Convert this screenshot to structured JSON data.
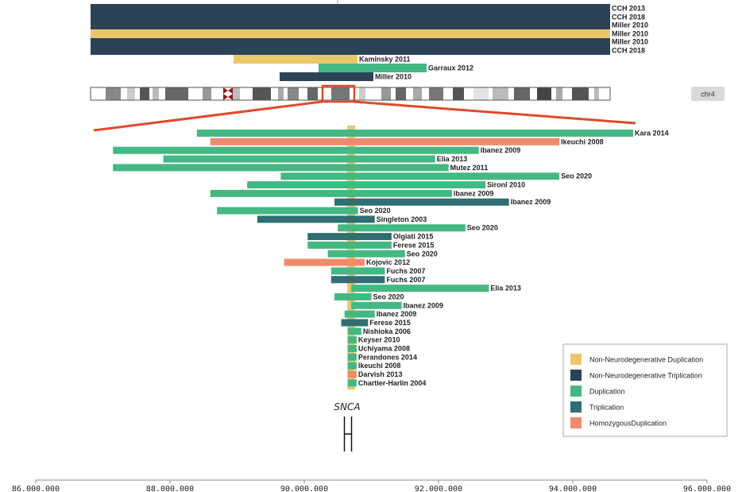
{
  "chart_data": {
    "type": "bar",
    "orientation": "horizontal-ranges",
    "colors": {
      "Non-Neurodegenerative Duplication": "#EAC86A",
      "Non-Neurodegenerative Triplication": "#2C4257",
      "Duplication": "#44B883",
      "Triplication": "#2F6F72",
      "HomozygousDuplication": "#F08A6E"
    },
    "legend": {
      "placement": "bottom-right",
      "entries": [
        {
          "label": "Non-Neurodegenerative Duplication",
          "key": "Non-Neurodegenerative Duplication"
        },
        {
          "label": "Non-Neurodegenerative Triplication",
          "key": "Non-Neurodegenerative Triplication"
        },
        {
          "label": "Duplication",
          "key": "Duplication"
        },
        {
          "label": "Triplication",
          "key": "Triplication"
        },
        {
          "label": "HomozygousDuplication",
          "key": "HomozygousDuplication"
        }
      ]
    },
    "chromosome_label": "chr4",
    "gene_label": "SNCA",
    "gene_position": 90700000,
    "xlim": [
      86000000,
      96000000
    ],
    "x_ticks": [
      {
        "value": 86000000,
        "label": "86.000.000"
      },
      {
        "value": 88000000,
        "label": "88.000.000"
      },
      {
        "value": 90000000,
        "label": "90.000.000"
      },
      {
        "value": 92000000,
        "label": "92.000.000"
      },
      {
        "value": 94000000,
        "label": "94.000.000"
      },
      {
        "value": 96000000,
        "label": "96.000.000"
      }
    ],
    "upper_panel": [
      {
        "label": "CCH 2013",
        "type": "Non-Neurodegenerative Triplication",
        "scope": "full"
      },
      {
        "label": "CCH 2018",
        "type": "Non-Neurodegenerative Triplication",
        "scope": "full"
      },
      {
        "label": "Miller 2010",
        "type": "Non-Neurodegenerative Triplication",
        "scope": "full"
      },
      {
        "label": "Miller 2010",
        "type": "Non-Neurodegenerative Duplication",
        "scope": "full"
      },
      {
        "label": "Miller 2010",
        "type": "Non-Neurodegenerative Triplication",
        "scope": "full"
      },
      {
        "label": "CCH 2018",
        "type": "Non-Neurodegenerative Triplication",
        "scope": "full"
      },
      {
        "label": "Kaminsky 2011",
        "type": "Non-Neurodegenerative Duplication",
        "scope": "arm"
      },
      {
        "label": "Garraux 2012",
        "type": "Duplication",
        "scope": "arm"
      },
      {
        "label": "Miller 2010",
        "type": "Non-Neurodegenerative Triplication",
        "scope": "arm"
      }
    ],
    "series": [
      {
        "label": "Kara 2014",
        "type": "Duplication",
        "start": 88400000,
        "end": 94900000
      },
      {
        "label": "Ikeuchi 2008",
        "type": "HomozygousDuplication",
        "start": 88600000,
        "end": 93800000
      },
      {
        "label": "Ibanez 2009",
        "type": "Duplication",
        "start": 87150000,
        "end": 92600000
      },
      {
        "label": "Elia 2013",
        "type": "Duplication",
        "start": 87900000,
        "end": 91950000
      },
      {
        "label": "Mutez 2011",
        "type": "Duplication",
        "start": 87150000,
        "end": 92150000
      },
      {
        "label": "Seo 2020",
        "type": "Duplication",
        "start": 89650000,
        "end": 93800000
      },
      {
        "label": "Sironi 2010",
        "type": "Duplication",
        "start": 89150000,
        "end": 92700000
      },
      {
        "label": "Ibanez 2009",
        "type": "Duplication",
        "start": 88600000,
        "end": 92200000
      },
      {
        "label": "Ibanez 2009",
        "type": "Triplication",
        "start": 90450000,
        "end": 93050000
      },
      {
        "label": "Seo 2020",
        "type": "Duplication",
        "start": 88700000,
        "end": 90800000
      },
      {
        "label": "Singleton 2003",
        "type": "Triplication",
        "start": 89300000,
        "end": 91050000
      },
      {
        "label": "Seo 2020",
        "type": "Duplication",
        "start": 90500000,
        "end": 92400000
      },
      {
        "label": "Olgiati 2015",
        "type": "Triplication",
        "start": 90050000,
        "end": 91300000
      },
      {
        "label": "Ferese 2015",
        "type": "Duplication",
        "start": 90050000,
        "end": 91300000
      },
      {
        "label": "Seo 2020",
        "type": "Duplication",
        "start": 90350000,
        "end": 91500000
      },
      {
        "label": "Kojovic 2012",
        "type": "HomozygousDuplication",
        "start": 89700000,
        "end": 90900000
      },
      {
        "label": "Fuchs 2007",
        "type": "Duplication",
        "start": 90400000,
        "end": 91200000
      },
      {
        "label": "Fuchs 2007",
        "type": "Triplication",
        "start": 90400000,
        "end": 91200000
      },
      {
        "label": "Elia 2013",
        "type": "Duplication",
        "start": 90700000,
        "end": 92750000
      },
      {
        "label": "Seo 2020",
        "type": "Duplication",
        "start": 90450000,
        "end": 91000000
      },
      {
        "label": "Ibanez 2009",
        "type": "Duplication",
        "start": 90700000,
        "end": 91450000
      },
      {
        "label": "Ibanez 2009",
        "type": "Duplication",
        "start": 90600000,
        "end": 91050000
      },
      {
        "label": "Ferese 2015",
        "type": "Triplication",
        "start": 90550000,
        "end": 90950000
      },
      {
        "label": "Nishioka 2006",
        "type": "Duplication",
        "start": 90650000,
        "end": 90850000
      },
      {
        "label": "Keyser 2010",
        "type": "Duplication",
        "start": 90650000,
        "end": 90780000
      },
      {
        "label": "Uchiyama 2008",
        "type": "Duplication",
        "start": 90650000,
        "end": 90780000
      },
      {
        "label": "Perandones 2014",
        "type": "Duplication",
        "start": 90650000,
        "end": 90780000
      },
      {
        "label": "Ikeuchi 2008",
        "type": "Duplication",
        "start": 90650000,
        "end": 90780000
      },
      {
        "label": "Darvish 2013",
        "type": "HomozygousDuplication",
        "start": 90650000,
        "end": 90780000
      },
      {
        "label": "Chartier-Harlin 2004",
        "type": "Duplication",
        "start": 90650000,
        "end": 90780000
      }
    ]
  }
}
